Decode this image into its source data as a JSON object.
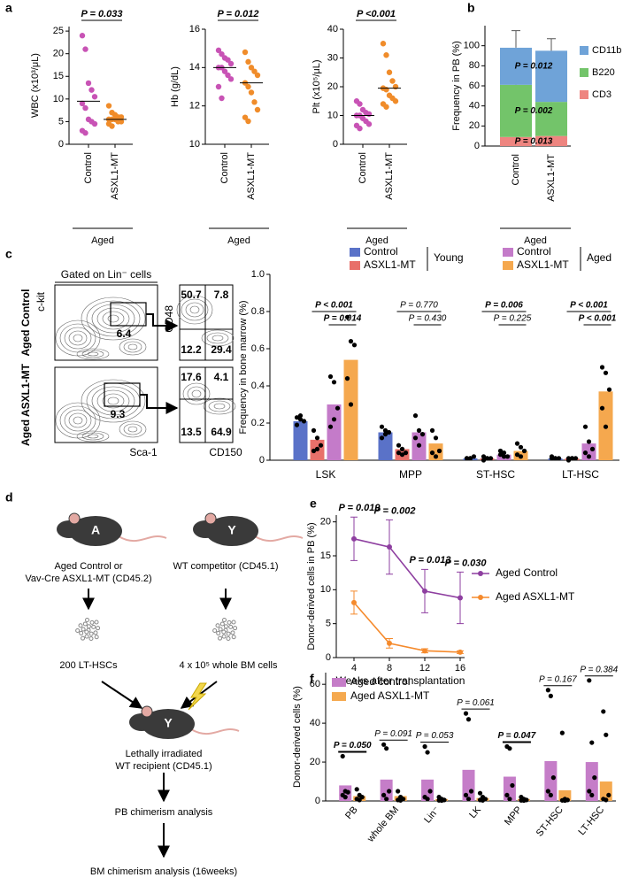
{
  "panels": [
    "a",
    "b",
    "c",
    "d",
    "e",
    "f"
  ],
  "chart_data": [
    {
      "type": "dot",
      "ylabel": "WBC (x10³/μL)",
      "categories": [
        "Control",
        "ASXL1-MT"
      ],
      "colors": [
        "#c853b5",
        "#f08c2a"
      ],
      "points": [
        [
          24,
          21,
          13.5,
          12,
          10.5,
          9,
          8,
          5.5,
          5,
          4.5,
          3,
          2.5
        ],
        [
          8.5,
          7,
          6.5,
          6,
          6,
          5.5,
          5.5,
          5.5,
          5,
          5,
          4.5,
          4
        ]
      ],
      "medians": [
        9.5,
        5.5
      ],
      "ylim": [
        0,
        26
      ],
      "yticks": [
        0,
        5,
        10,
        15,
        20,
        25
      ],
      "p_label": "P = 0.033",
      "group_label": "Aged"
    },
    {
      "type": "dot",
      "ylabel": "Hb (g/dL)",
      "categories": [
        "Control",
        "ASXL1-MT"
      ],
      "colors": [
        "#c853b5",
        "#f08c2a"
      ],
      "points": [
        [
          14.9,
          14.7,
          14.5,
          14.4,
          14.2,
          14.0,
          14.0,
          13.8,
          13.6,
          13.4,
          13.0,
          12.4
        ],
        [
          14.8,
          14.3,
          14.0,
          13.8,
          13.6,
          13.2,
          13.0,
          12.7,
          12.2,
          11.8,
          11.4,
          11.2
        ]
      ],
      "medians": [
        14.0,
        13.2
      ],
      "ylim": [
        10,
        16
      ],
      "yticks": [
        10,
        12,
        14,
        16
      ],
      "p_label": "P = 0.012",
      "group_label": "Aged"
    },
    {
      "type": "dot",
      "ylabel": "Plt (x10⁵/μL)",
      "categories": [
        "Control",
        "ASXL1-MT"
      ],
      "colors": [
        "#c853b5",
        "#f08c2a"
      ],
      "points": [
        [
          15,
          14,
          12,
          11,
          10.5,
          10,
          10,
          9,
          8,
          7,
          6.5,
          5.5
        ],
        [
          35,
          31,
          25,
          22,
          20,
          19.5,
          19,
          17,
          16,
          15,
          14,
          13
        ]
      ],
      "medians": [
        10,
        19.5
      ],
      "ylim": [
        0,
        40
      ],
      "yticks": [
        0,
        10,
        20,
        30,
        40
      ],
      "p_label": "P <0.001",
      "group_label": "Aged"
    },
    {
      "type": "stacked_bar",
      "ylabel": "Frequency in PB (%)",
      "categories": [
        "Control",
        "ASXL1-MT"
      ],
      "series": [
        {
          "name": "CD3",
          "color": "#ee8580",
          "values": [
            9,
            10
          ],
          "errors": [
            2,
            5
          ],
          "p_label": "P = 0.013"
        },
        {
          "name": "B220",
          "color": "#73c46a",
          "values": [
            52,
            34
          ],
          "errors": [
            17,
            11
          ],
          "p_label": "P = 0.002"
        },
        {
          "name": "CD11b",
          "color": "#6fa3d8",
          "values": [
            37,
            51
          ],
          "errors": [
            17,
            12
          ],
          "p_label": "P = 0.012"
        }
      ],
      "ylim": [
        0,
        120
      ],
      "yticks": [
        0,
        20,
        40,
        60,
        80,
        100
      ],
      "group_label": "Aged"
    },
    {
      "type": "bar_dots",
      "ylabel": "Frequency in bone marrow (%)",
      "categories": [
        "LSK",
        "MPP",
        "ST-HSC",
        "LT-HSC"
      ],
      "legend_groups": [
        "Young",
        "Aged"
      ],
      "series": [
        {
          "name": "Control",
          "color": "#5a72c8",
          "values": [
            0.21,
            0.15,
            0.01,
            0.01
          ],
          "points": [
            [
              0.23,
              0.22,
              0.21,
              0.19,
              0.24
            ],
            [
              0.18,
              0.16,
              0.15,
              0.12,
              0.14
            ],
            [
              0.01,
              0.01,
              0.02,
              0.01,
              0.01
            ],
            [
              0.02,
              0.01,
              0.01,
              0.01,
              0.01
            ]
          ]
        },
        {
          "name": "ASXL1-MT",
          "color": "#e8706a",
          "values": [
            0.11,
            0.06,
            0.01,
            0.01
          ],
          "points": [
            [
              0.16,
              0.12,
              0.08,
              0.05,
              0.06
            ],
            [
              0.08,
              0.06,
              0.04,
              0.04,
              0.03
            ],
            [
              0.02,
              0.01,
              0.01,
              0,
              0.01
            ],
            [
              0.01,
              0.01,
              0.01,
              0,
              0.01
            ]
          ]
        },
        {
          "name": "Control",
          "color": "#c47bc9",
          "values": [
            0.3,
            0.15,
            0.03,
            0.09
          ],
          "points": [
            [
              0.45,
              0.42,
              0.28,
              0.18,
              0.22
            ],
            [
              0.24,
              0.16,
              0.14,
              0.12,
              0.08
            ],
            [
              0.05,
              0.04,
              0.02,
              0.03,
              0.02
            ],
            [
              0.18,
              0.1,
              0.06,
              0.04,
              0.02
            ]
          ]
        },
        {
          "name": "ASXL1-MT",
          "color": "#f5a84e",
          "values": [
            0.54,
            0.09,
            0.05,
            0.37
          ],
          "points": [
            [
              0.77,
              0.64,
              0.62,
              0.44,
              0.3
            ],
            [
              0.16,
              0.12,
              0.05,
              0.04,
              0.02
            ],
            [
              0.09,
              0.07,
              0.05,
              0.03,
              0.02
            ],
            [
              0.5,
              0.47,
              0.38,
              0.28,
              0.18
            ]
          ]
        }
      ],
      "p_labels": [
        [
          "P < 0.001",
          "P = 0.014"
        ],
        [
          "P = 0.770",
          "P = 0.430"
        ],
        [
          "P = 0.006",
          "P = 0.225"
        ],
        [
          "P < 0.001",
          "P < 0.001"
        ]
      ],
      "ylim": [
        0,
        1
      ],
      "yticks": [
        0,
        0.2,
        0.4,
        0.6,
        0.8,
        {
          "value": 1,
          "label": "1.0"
        }
      ]
    },
    {
      "type": "line",
      "xlabel": "Weeks after transplantation",
      "ylabel": "Donor-derived cells in PB (%)",
      "x": [
        4,
        8,
        12,
        16
      ],
      "series": [
        {
          "name": "Aged Control",
          "color": "#8e3fa0",
          "values": [
            17.5,
            16.3,
            9.8,
            8.8
          ],
          "errors": [
            3.2,
            4,
            3.2,
            3.8
          ]
        },
        {
          "name": "Aged ASXL1-MT",
          "color": "#f58a2c",
          "values": [
            8.1,
            2.1,
            1.0,
            0.8
          ],
          "errors": [
            1.7,
            0.7,
            0.3,
            0.2
          ]
        }
      ],
      "p_labels": [
        "P = 0.019",
        "P = 0.002",
        "P = 0.013",
        "P = 0.030"
      ],
      "xlim": [
        2,
        16.5
      ],
      "xticks": [
        4,
        8,
        12,
        16
      ],
      "ylim": [
        0,
        21
      ],
      "yticks": [
        0,
        5,
        10,
        15,
        20
      ]
    },
    {
      "type": "bar_dots",
      "ylabel": "Donor-derived cells (%)",
      "categories": [
        "PB",
        "whole BM",
        "Lin⁻",
        "LK",
        "MPP",
        "ST-HSC",
        "LT-HSC"
      ],
      "series": [
        {
          "name": "Aged control",
          "color": "#c57dc8",
          "values": [
            8,
            11,
            11,
            16,
            12.5,
            20.5,
            20
          ],
          "points": [
            [
              23,
              5,
              4.5,
              3,
              2
            ],
            [
              29,
              27,
              5,
              3,
              1
            ],
            [
              28,
              25,
              5,
              2,
              1
            ],
            [
              45,
              42,
              5,
              3,
              1
            ],
            [
              28,
              27,
              8,
              3,
              1
            ],
            [
              57,
              54,
              12,
              5,
              3
            ],
            [
              62,
              30,
              12,
              5,
              3
            ]
          ]
        },
        {
          "name": "Aged ASXL1-MT",
          "color": "#f5a94f",
          "values": [
            2.5,
            2.5,
            1,
            1.5,
            1,
            5.5,
            10
          ],
          "points": [
            [
              6,
              3,
              2,
              1,
              0.5
            ],
            [
              5,
              2,
              1,
              0.5,
              0.3
            ],
            [
              2,
              1,
              0.5,
              0.3,
              0.2
            ],
            [
              4,
              2,
              1,
              0.5,
              0.3
            ],
            [
              2,
              1,
              0.5,
              0.3,
              0.2
            ],
            [
              35,
              1,
              0.5,
              0.3,
              0.2
            ],
            [
              46,
              34,
              3,
              1,
              0.5
            ]
          ]
        }
      ],
      "p_labels": [
        [
          "P = 0.050"
        ],
        [
          "P = 0.091"
        ],
        [
          "P = 0.053"
        ],
        [
          "P = 0.061"
        ],
        [
          "P = 0.047"
        ],
        [
          "P = 0.167"
        ],
        [
          "P = 0.384"
        ]
      ],
      "ylim": [
        0,
        66
      ],
      "yticks": [
        0,
        20,
        40,
        60
      ]
    }
  ],
  "flow": {
    "gate_label": "Gated on Lin⁻ cells",
    "y_label": "c-kit",
    "x_label": "Sca-1",
    "y2_label": "CD48",
    "x2_label": "CD150",
    "rows": [
      {
        "name": "Aged Control",
        "gate": "6.4",
        "quadrants": [
          "50.7",
          "7.8",
          "12.2",
          "29.4"
        ]
      },
      {
        "name": "Aged ASXL1-MT",
        "gate": "9.3",
        "quadrants": [
          "17.6",
          "4.1",
          "13.5",
          "64.9"
        ]
      }
    ]
  },
  "diagram": {
    "mouse_a": "A",
    "mouse_y": "Y",
    "donor": [
      "Aged Control or",
      "Vav-Cre ASXL1-MT (CD45.2)"
    ],
    "competitor": "WT competitor (CD45.1)",
    "donor_cells": "200 LT-HSCs",
    "competitor_cells": "4 x 10⁵ whole BM cells",
    "recipient": [
      "Lethally irradiated",
      "WT recipient (CD45.1)"
    ],
    "step1": "PB chimerism analysis",
    "step2": "BM chimerism analysis (16weeks)"
  }
}
